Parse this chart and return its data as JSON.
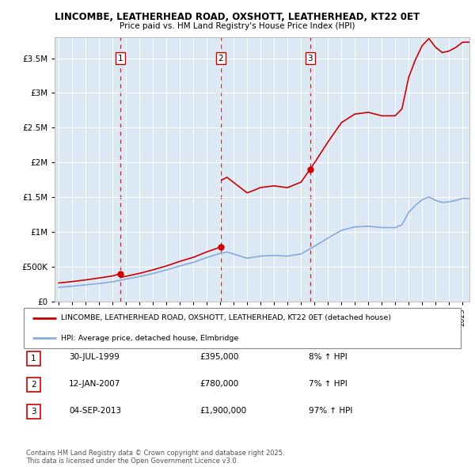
{
  "title_line1": "LINCOMBE, LEATHERHEAD ROAD, OXSHOTT, LEATHERHEAD, KT22 0ET",
  "title_line2": "Price paid vs. HM Land Registry's House Price Index (HPI)",
  "plot_bg_color": "#dce9f5",
  "ytick_values": [
    0,
    500000,
    1000000,
    1500000,
    2000000,
    2500000,
    3000000,
    3500000
  ],
  "ylim": [
    0,
    3800000
  ],
  "xlim_start": 1994.7,
  "xlim_end": 2025.5,
  "transactions": [
    {
      "year": 1999.58,
      "price": 395000,
      "label": "1"
    },
    {
      "year": 2007.04,
      "price": 780000,
      "label": "2"
    },
    {
      "year": 2013.67,
      "price": 1900000,
      "label": "3"
    }
  ],
  "transaction_color": "#cc0000",
  "hpi_line_color": "#88aadd",
  "legend_label_red": "LINCOMBE, LEATHERHEAD ROAD, OXSHOTT, LEATHERHEAD, KT22 0ET (detached house)",
  "legend_label_blue": "HPI: Average price, detached house, Elmbridge",
  "table_rows": [
    {
      "num": "1",
      "date": "30-JUL-1999",
      "price": "£395,000",
      "hpi": "8% ↑ HPI"
    },
    {
      "num": "2",
      "date": "12-JAN-2007",
      "price": "£780,000",
      "hpi": "7% ↑ HPI"
    },
    {
      "num": "3",
      "date": "04-SEP-2013",
      "price": "£1,900,000",
      "hpi": "97% ↑ HPI"
    }
  ],
  "footer": "Contains HM Land Registry data © Crown copyright and database right 2025.\nThis data is licensed under the Open Government Licence v3.0."
}
